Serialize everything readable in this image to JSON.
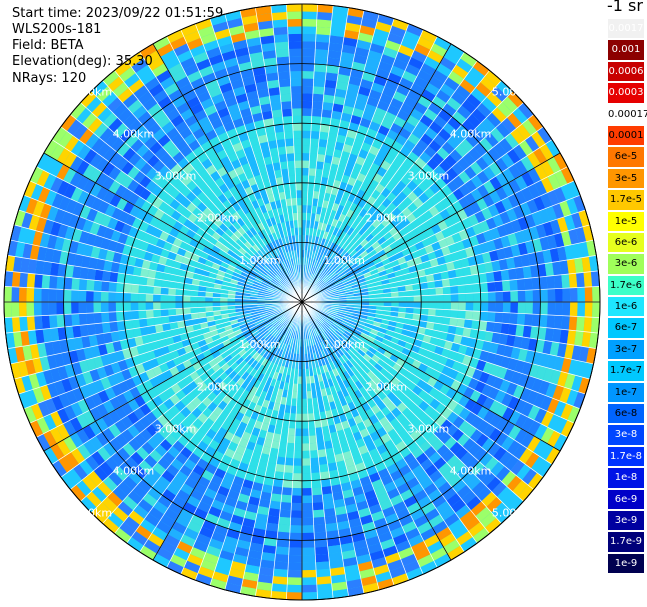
{
  "header": {
    "start_time": "Start time: 2023/09/22 01:51:59",
    "instrument": "WLS200s-181",
    "field": "Field: BETA",
    "elevation": "Elevation(deg): 35.30",
    "nrays": "NRays: 120"
  },
  "unit_label": "-1 sr",
  "range_rings": {
    "labels": [
      "1.00km",
      "2.00km",
      "3.00km",
      "4.00km",
      "5.00km"
    ],
    "ring_km": [
      1,
      2,
      3,
      4,
      5
    ]
  },
  "colorbar": {
    "labels": [
      "0.0017",
      "0.001",
      "0.0006",
      "0.0003",
      "0.00017",
      "0.0001",
      "6e-5",
      "3e-5",
      "1.7e-5",
      "1e-5",
      "6e-6",
      "3e-6",
      "1.7e-6",
      "1e-6",
      "6e-7",
      "3e-7",
      "1.7e-7",
      "1e-7",
      "6e-8",
      "3e-8",
      "1.7e-8",
      "1e-8",
      "6e-9",
      "3e-9",
      "1.7e-9",
      "1e-9"
    ],
    "colors": [
      "#f1f1f1",
      "#8c0000",
      "#c80000",
      "#e60000",
      "#ffffff",
      "#ff3c00",
      "#ff7800",
      "#ff9600",
      "#ffc800",
      "#ffff00",
      "#e6ff1e",
      "#a0ff5a",
      "#3cffc8",
      "#1ee6ff",
      "#00c8ff",
      "#00a0ff",
      "#00c8ff",
      "#0096ff",
      "#0064ff",
      "#0046ff",
      "#0032ff",
      "#0014e6",
      "#0000c8",
      "#0000a0",
      "#00007a",
      "#000050"
    ]
  }
}
